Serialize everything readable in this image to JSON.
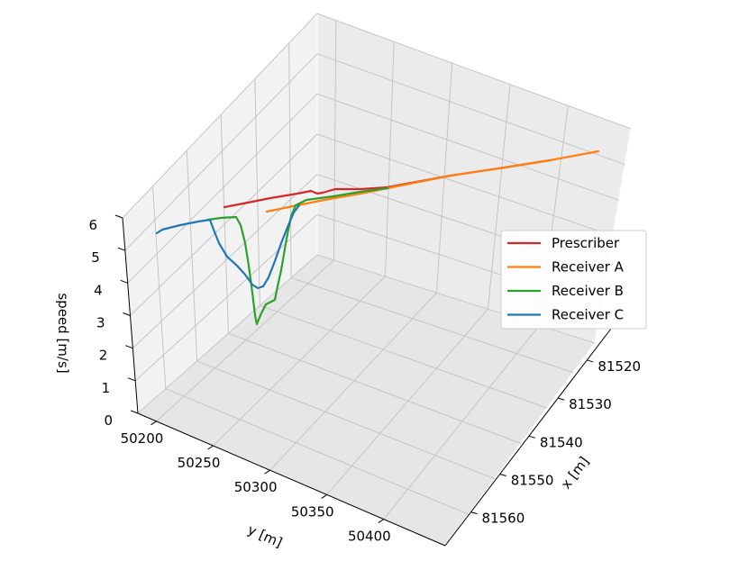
{
  "chart_data": {
    "type": "line",
    "projection": "3d",
    "xlabel": "x [m]",
    "ylabel": "y [m]",
    "zlabel": "speed [m/s]",
    "x_ticks": [
      "81520",
      "81530",
      "81540",
      "81550",
      "81560"
    ],
    "y_ticks": [
      "50200",
      "50250",
      "50300",
      "50350",
      "50400"
    ],
    "z_ticks": [
      "0",
      "1",
      "2",
      "3",
      "4",
      "5",
      "6"
    ],
    "grid": true,
    "legend_position": "right",
    "legend": [
      "Prescriber",
      "Receiver A",
      "Receiver B",
      "Receiver C"
    ],
    "series": [
      {
        "name": "Prescriber",
        "color": "#d62728",
        "path": [
          [
            249,
            230
          ],
          [
            270,
            226
          ],
          [
            300,
            220
          ],
          [
            330,
            215
          ],
          [
            345,
            212
          ],
          [
            352,
            215
          ],
          [
            358,
            214
          ],
          [
            372,
            210
          ],
          [
            400,
            210
          ],
          [
            430,
            208
          ],
          [
            500,
            195
          ],
          [
            560,
            186
          ],
          [
            610,
            178
          ]
        ]
      },
      {
        "name": "Receiver A",
        "color": "#ff7f0e",
        "path": [
          [
            296,
            235
          ],
          [
            320,
            230
          ],
          [
            335,
            227
          ],
          [
            360,
            222
          ],
          [
            400,
            215
          ],
          [
            450,
            205
          ],
          [
            500,
            195
          ],
          [
            560,
            186
          ],
          [
            610,
            178
          ],
          [
            664,
            168
          ]
        ]
      },
      {
        "name": "Receiver B",
        "color": "#2ca02c",
        "path": [
          [
            231,
            244
          ],
          [
            245,
            242
          ],
          [
            262,
            241
          ],
          [
            267,
            250
          ],
          [
            272,
            270
          ],
          [
            276,
            295
          ],
          [
            280,
            325
          ],
          [
            283,
            350
          ],
          [
            285,
            360
          ],
          [
            289,
            350
          ],
          [
            295,
            338
          ],
          [
            305,
            333
          ],
          [
            308,
            318
          ],
          [
            312,
            300
          ],
          [
            318,
            265
          ],
          [
            323,
            240
          ],
          [
            328,
            228
          ],
          [
            340,
            222
          ],
          [
            370,
            218
          ],
          [
            400,
            213
          ],
          [
            430,
            209
          ]
        ]
      },
      {
        "name": "Receiver C",
        "color": "#1f77b4",
        "path": [
          [
            174,
            259
          ],
          [
            180,
            255
          ],
          [
            200,
            250
          ],
          [
            220,
            246
          ],
          [
            233,
            244
          ],
          [
            237,
            255
          ],
          [
            243,
            270
          ],
          [
            252,
            285
          ],
          [
            263,
            295
          ],
          [
            272,
            305
          ],
          [
            280,
            316
          ],
          [
            286,
            320
          ],
          [
            292,
            318
          ],
          [
            298,
            308
          ],
          [
            305,
            290
          ],
          [
            312,
            270
          ],
          [
            320,
            250
          ],
          [
            326,
            236
          ],
          [
            332,
            228
          ]
        ]
      }
    ]
  }
}
